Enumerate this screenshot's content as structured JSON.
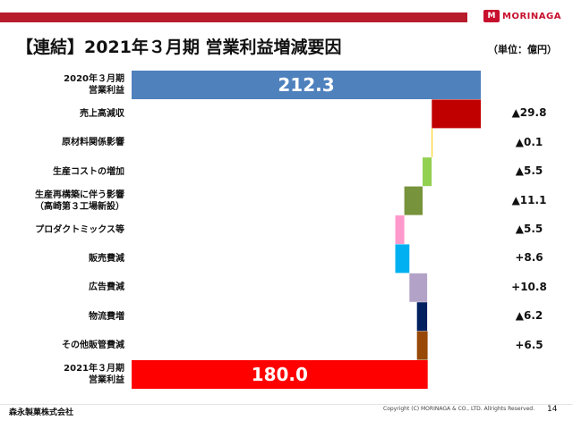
{
  "header": {
    "title": "【連結】2021年３月期 営業利益増減要因",
    "unit": "（単位：億円）",
    "logo_mark": "M",
    "logo_text": "MORINAGA"
  },
  "footer": {
    "company": "森永製菓株式会社",
    "copyright": "Copyright (C) MORINAGA & CO., LTD. Allrights Reserved.",
    "page": "14"
  },
  "colors": {
    "brand_red": "#b71c2c"
  },
  "chart_data": {
    "type": "bar",
    "subtype": "waterfall",
    "orientation": "horizontal",
    "start": 212.3,
    "end": 180.0,
    "categories": [
      {
        "label": "2020年３月期\n営業利益",
        "value": 212.3,
        "kind": "total",
        "display": "212.3",
        "color": "#4f81bd"
      },
      {
        "label": "売上高減収",
        "value": -29.8,
        "kind": "delta",
        "display": "▲29.8",
        "color": "#c00000"
      },
      {
        "label": "原材料関係影響",
        "value": -0.1,
        "kind": "delta",
        "display": "▲0.1",
        "color": "#ffcc00"
      },
      {
        "label": "生産コストの増加",
        "value": -5.5,
        "kind": "delta",
        "display": "▲5.5",
        "color": "#92d050"
      },
      {
        "label": "生産再構築に伴う影響\n（高崎第３工場新設）",
        "value": -11.1,
        "kind": "delta",
        "display": "▲11.1",
        "color": "#77933c"
      },
      {
        "label": "プロダクトミックス等",
        "value": -5.5,
        "kind": "delta",
        "display": "▲5.5",
        "color": "#ff99cc"
      },
      {
        "label": "販売費減",
        "value": 8.6,
        "kind": "delta",
        "display": "+8.6",
        "color": "#00b0f0"
      },
      {
        "label": "広告費減",
        "value": 10.8,
        "kind": "delta",
        "display": "+10.8",
        "color": "#b3a2c7"
      },
      {
        "label": "物流費増",
        "value": -6.2,
        "kind": "delta",
        "display": "▲6.2",
        "color": "#002060"
      },
      {
        "label": "その他販管費減",
        "value": 6.5,
        "kind": "delta",
        "display": "+6.5",
        "color": "#984807"
      },
      {
        "label": "2021年３月期\n営業利益",
        "value": 180.0,
        "kind": "total",
        "display": "180.0",
        "color": "#ff0000"
      }
    ],
    "title": "",
    "xlabel": "",
    "ylabel": "",
    "grid": false,
    "legend": "none"
  }
}
